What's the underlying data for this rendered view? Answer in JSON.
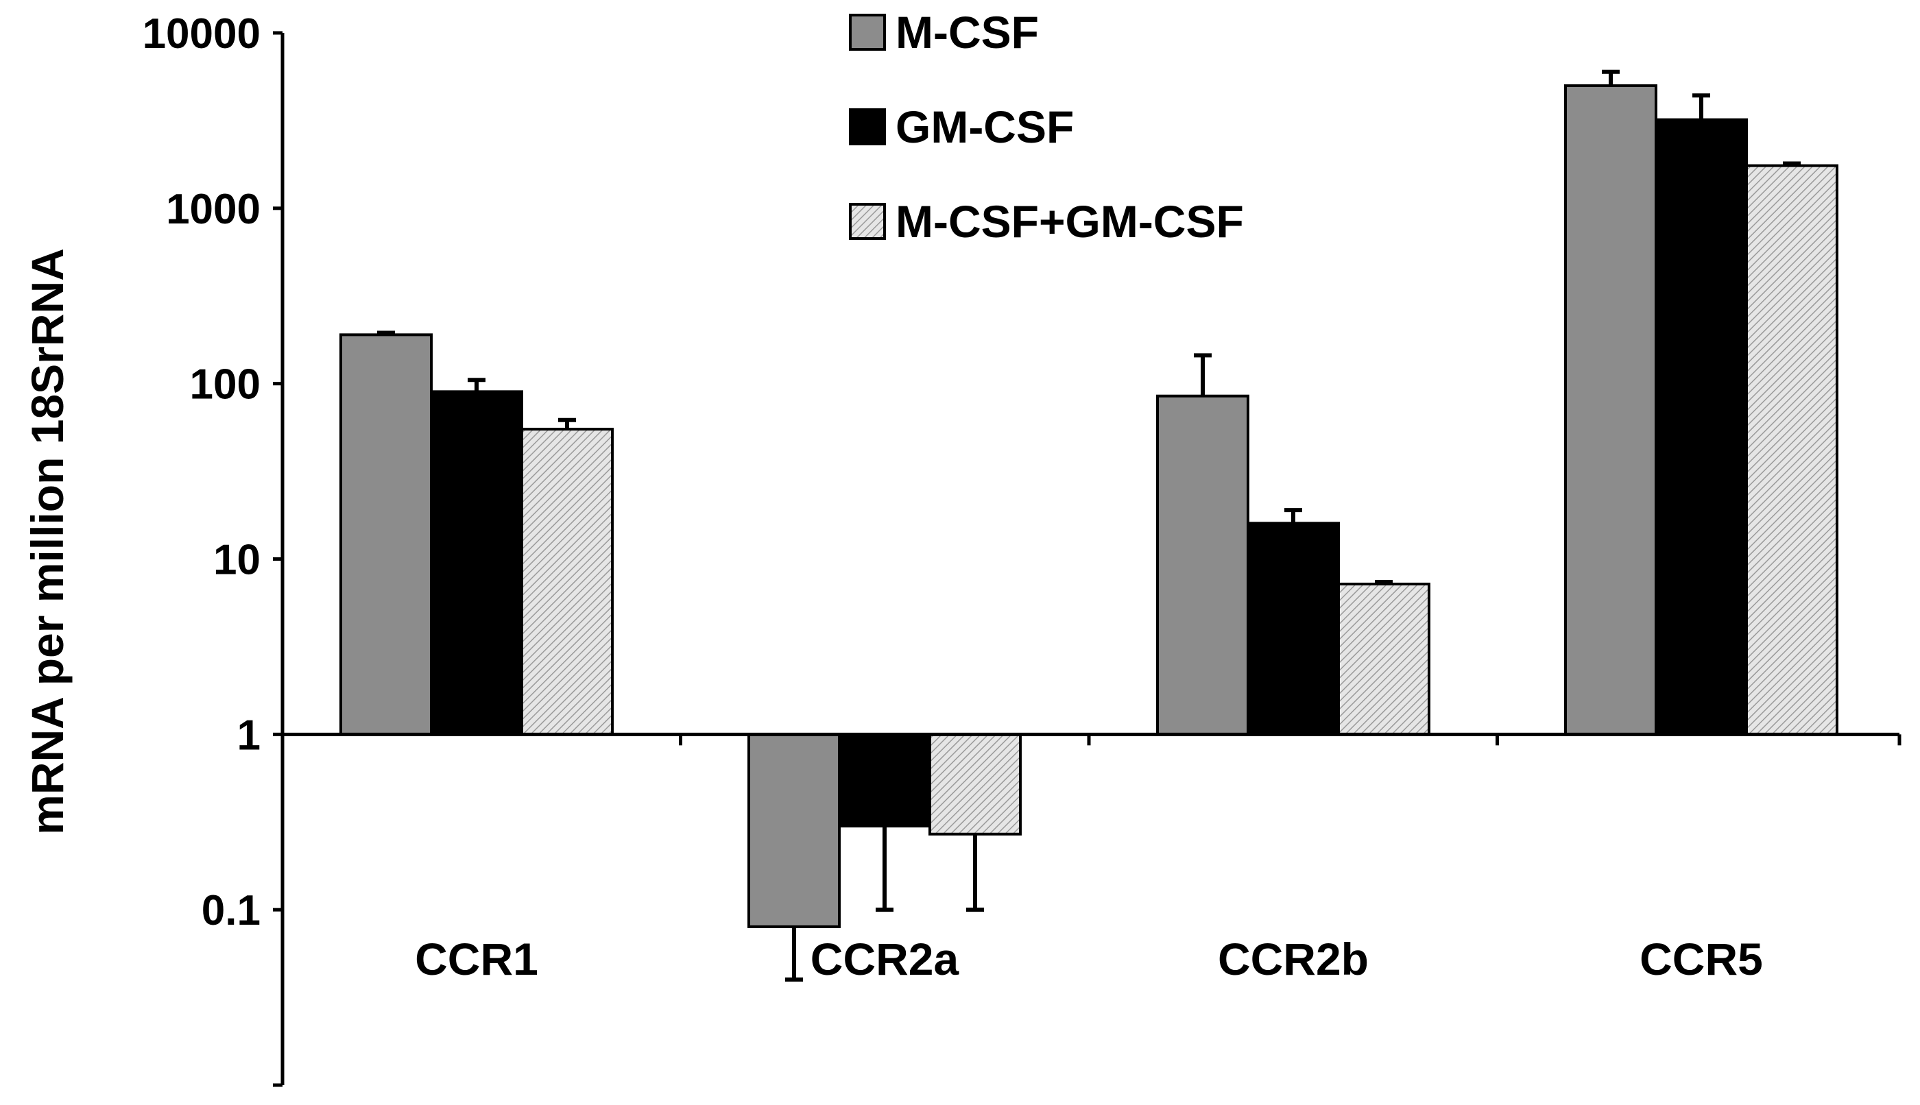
{
  "chart_data": {
    "type": "bar",
    "scale": "log",
    "title": "",
    "xlabel": "",
    "ylabel": "mRNA per million 18SrRNA",
    "ylim": [
      0.01,
      10000
    ],
    "baseline": 1,
    "yticks": [
      {
        "value": 10000,
        "label": "10000"
      },
      {
        "value": 1000,
        "label": "1000"
      },
      {
        "value": 100,
        "label": "100"
      },
      {
        "value": 10,
        "label": "10"
      },
      {
        "value": 1,
        "label": "1"
      },
      {
        "value": 0.1,
        "label": "0.1"
      },
      {
        "value": 0.01,
        "label": ""
      }
    ],
    "categories": [
      "CCR1",
      "CCR2a",
      "CCR2b",
      "CCR5"
    ],
    "series": [
      {
        "name": "M-CSF",
        "color": "#8c8c8c",
        "pattern": "solid",
        "values": [
          190,
          0.08,
          85,
          5000
        ],
        "errors": [
          [
            190,
            195
          ],
          [
            0.08,
            0.04
          ],
          [
            85,
            145
          ],
          [
            5000,
            6000
          ]
        ]
      },
      {
        "name": "GM-CSF",
        "color": "#000000",
        "pattern": "solid",
        "values": [
          90,
          0.3,
          16,
          3200
        ],
        "errors": [
          [
            90,
            105
          ],
          [
            0.3,
            0.1
          ],
          [
            16,
            19
          ],
          [
            3200,
            4400
          ]
        ]
      },
      {
        "name": "M-CSF+GM-CSF",
        "color": "#cfcfcf",
        "pattern": "hatched",
        "values": [
          55,
          0.27,
          7.2,
          1750
        ],
        "errors": [
          [
            55,
            62
          ],
          [
            0.27,
            0.1
          ],
          [
            7.2,
            7.4
          ],
          [
            1750,
            1800
          ]
        ]
      }
    ],
    "legend_position": "top-center"
  }
}
